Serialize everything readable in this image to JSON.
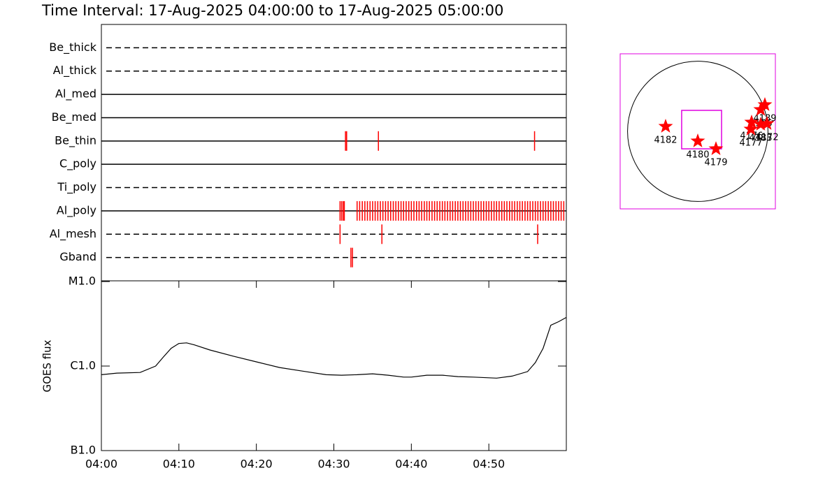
{
  "chart_data": [
    {
      "type": "event",
      "title": "Time Interval: 17-Aug-2025 04:00:00 to 17-Aug-2025 05:00:00",
      "categories": [
        "Be_thick",
        "Al_thick",
        "Al_med",
        "Be_med",
        "Be_thin",
        "C_poly",
        "Ti_poly",
        "Al_poly",
        "Al_mesh",
        "Gband"
      ],
      "line_styles": [
        "dashed",
        "dashed",
        "solid",
        "solid",
        "solid",
        "solid",
        "dashed",
        "solid",
        "dashed",
        "dashed"
      ],
      "events": [
        [],
        [],
        [],
        [],
        [
          31.5,
          31.65,
          35.75,
          55.9
        ],
        [],
        [],
        [
          30.8,
          31.0,
          31.2,
          31.35,
          33,
          33.33,
          33.67,
          34,
          34.33,
          34.67,
          35,
          35.33,
          35.67,
          36,
          36.33,
          36.67,
          37,
          37.33,
          37.67,
          38,
          38.33,
          38.67,
          39,
          39.33,
          39.67,
          40,
          40.33,
          40.67,
          41,
          41.33,
          41.67,
          42,
          42.33,
          42.67,
          43,
          43.33,
          43.67,
          44,
          44.33,
          44.67,
          45,
          45.33,
          45.67,
          46,
          46.33,
          46.67,
          47,
          47.33,
          47.67,
          48,
          48.33,
          48.67,
          49,
          49.33,
          49.67,
          50,
          50.33,
          50.67,
          51,
          51.33,
          51.67,
          52,
          52.33,
          52.67,
          53,
          53.33,
          53.67,
          54,
          54.33,
          54.67,
          55,
          55.33,
          55.67,
          56,
          56.33,
          56.67,
          57,
          57.33,
          57.67,
          58,
          58.33,
          58.67,
          59,
          59.33,
          59.67
        ],
        [
          30.8,
          36.2,
          56.3
        ],
        [
          32.2,
          32.4
        ]
      ],
      "color": "#ff0000",
      "xlim": [
        0,
        60
      ]
    },
    {
      "type": "line",
      "y_label": "GOES flux",
      "x": [
        0,
        2,
        5,
        7,
        8,
        9,
        10,
        11,
        12,
        14,
        17,
        20,
        23,
        26,
        29,
        31,
        33,
        35,
        37,
        39,
        40,
        42,
        44,
        46,
        48,
        51,
        53,
        55,
        56,
        57,
        58,
        59,
        60
      ],
      "values": [
        7.9e-07,
        8.25e-07,
        8.4e-07,
        1e-06,
        1.28e-06,
        1.62e-06,
        1.85e-06,
        1.88e-06,
        1.78e-06,
        1.55e-06,
        1.31e-06,
        1.12e-06,
        9.6e-07,
        8.7e-07,
        7.9e-07,
        7.8e-07,
        7.9e-07,
        8.1e-07,
        7.8e-07,
        7.4e-07,
        7.4e-07,
        7.8e-07,
        7.8e-07,
        7.5e-07,
        7.4e-07,
        7.2e-07,
        7.6e-07,
        8.6e-07,
        1.1e-06,
        1.62e-06,
        3.04e-06,
        3.35e-06,
        3.76e-06
      ],
      "color": "#000000",
      "xlim": [
        0,
        60
      ],
      "xticks": [
        {
          "value": 0,
          "label": "04:00"
        },
        {
          "value": 10,
          "label": "04:10"
        },
        {
          "value": 20,
          "label": "04:20"
        },
        {
          "value": 30,
          "label": "04:30"
        },
        {
          "value": 40,
          "label": "04:40"
        },
        {
          "value": 50,
          "label": "04:50"
        }
      ],
      "ylim": [
        1e-07,
        1e-05
      ],
      "log_y": true,
      "yticks": [
        {
          "value": 1e-05,
          "label": "M1.0"
        },
        {
          "value": 1e-06,
          "label": "C1.0"
        },
        {
          "value": 1e-07,
          "label": "B1.0"
        }
      ]
    },
    {
      "type": "map",
      "xlim": [
        -1050,
        1050
      ],
      "ylim": [
        -1050,
        1050
      ],
      "solar_radius": 950,
      "fov": {
        "x": [
          -218,
          322
        ],
        "y": [
          -237,
          284
        ]
      },
      "box_color": "#e000e0",
      "color": "#ff0000",
      "labels": [
        "4182",
        "4180",
        "4179",
        "4189",
        "4186",
        "4176",
        "4172",
        "4177",
        "4183"
      ],
      "x": [
        -435,
        0,
        246,
        908,
        851,
        728,
        937,
        719,
        851
      ],
      "y": [
        66,
        -132,
        -237,
        359,
        293,
        123,
        104,
        28,
        95
      ]
    }
  ]
}
